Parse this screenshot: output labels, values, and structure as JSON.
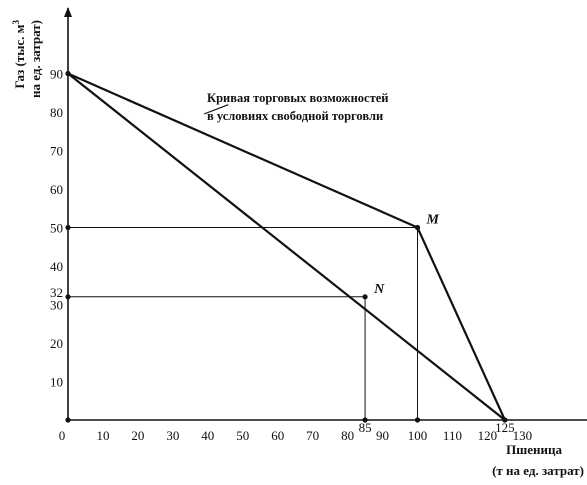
{
  "chart_data": {
    "type": "line",
    "xlabel": [
      "Пшеница",
      "(т на ед. затрат)"
    ],
    "ylabel": [
      "Газ (тыс. м",
      "3",
      "на ед. затрат)"
    ],
    "xlim": [
      0,
      140
    ],
    "ylim": [
      0,
      110
    ],
    "x_ticks": [
      {
        "value": 0,
        "label": "0"
      },
      {
        "value": 10,
        "label": "10"
      },
      {
        "value": 20,
        "label": "20"
      },
      {
        "value": 30,
        "label": "30"
      },
      {
        "value": 40,
        "label": "40"
      },
      {
        "value": 50,
        "label": "50"
      },
      {
        "value": 60,
        "label": "60"
      },
      {
        "value": 70,
        "label": "70"
      },
      {
        "value": 80,
        "label": "80"
      },
      {
        "value": 85,
        "label": "85"
      },
      {
        "value": 90,
        "label": "90"
      },
      {
        "value": 100,
        "label": "100"
      },
      {
        "value": 110,
        "label": "110"
      },
      {
        "value": 120,
        "label": "120"
      },
      {
        "value": 125,
        "label": "125"
      },
      {
        "value": 130,
        "label": "130"
      }
    ],
    "y_ticks": [
      {
        "value": 10,
        "label": "10"
      },
      {
        "value": 20,
        "label": "20"
      },
      {
        "value": 30,
        "label": "30"
      },
      {
        "value": 32,
        "label": "32"
      },
      {
        "value": 40,
        "label": "40"
      },
      {
        "value": 50,
        "label": "50"
      },
      {
        "value": 60,
        "label": "60"
      },
      {
        "value": 70,
        "label": "70"
      },
      {
        "value": 80,
        "label": "80"
      },
      {
        "value": 90,
        "label": "90"
      }
    ],
    "series": [
      {
        "points": [
          [
            0,
            90
          ],
          [
            125,
            0
          ]
        ]
      },
      {
        "points": [
          [
            0,
            90
          ],
          [
            100,
            50
          ],
          [
            125,
            0
          ]
        ]
      }
    ],
    "points": [
      {
        "label": "M",
        "x": 100,
        "y": 50
      },
      {
        "label": "N",
        "x": 85,
        "y": 32
      }
    ],
    "annotation": {
      "lines": [
        "Кривая торговых возможностей",
        "в условиях свободной торговли"
      ],
      "target": [
        45,
        78
      ]
    },
    "grid": false
  }
}
